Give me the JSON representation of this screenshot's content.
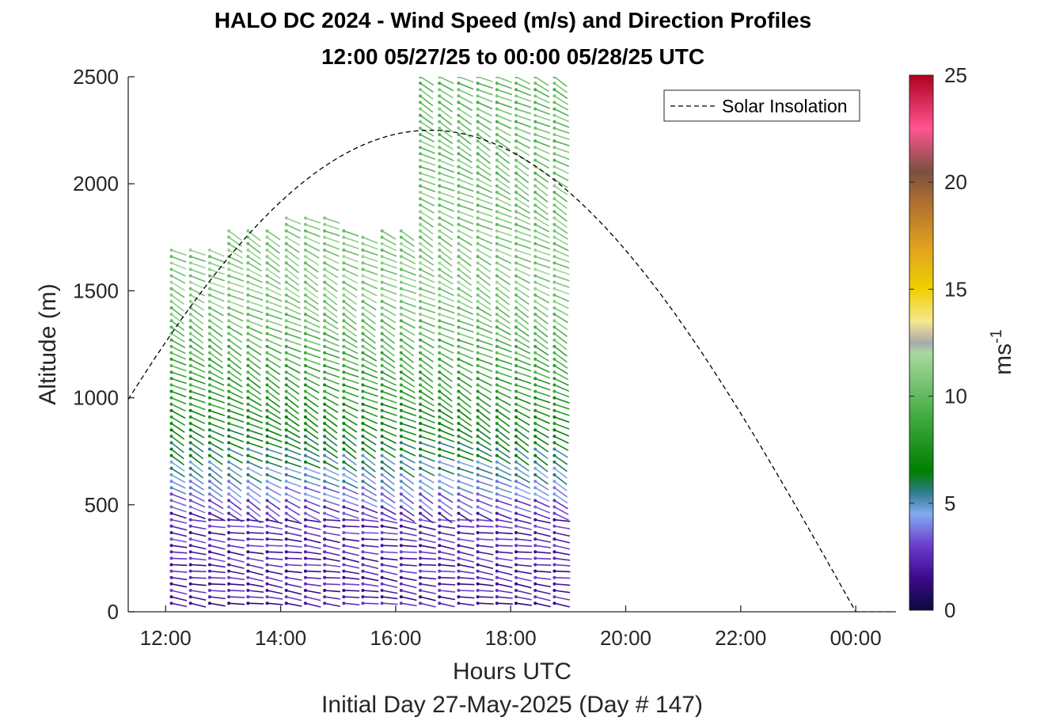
{
  "chart_data": {
    "type": "scatter",
    "title": "HALO DC 2024 - Wind Speed (m/s) and Direction Profiles",
    "subtitle": "12:00 05/27/25 to 00:00 05/28/25  UTC",
    "xlabel": "Hours UTC",
    "ylabel": "Altitude (m)",
    "footer": "Initial Day 27-May-2025 (Day # 147)",
    "x_ticks": [
      "12:00",
      "14:00",
      "16:00",
      "18:00",
      "20:00",
      "22:00",
      "00:00"
    ],
    "x_tick_hours": [
      12,
      14,
      16,
      18,
      20,
      22,
      24
    ],
    "xlim_hours": [
      11.35,
      24.7
    ],
    "y_ticks": [
      "0",
      "500",
      "1000",
      "1500",
      "2000",
      "2500"
    ],
    "ylim": [
      0,
      2500
    ],
    "colorbar": {
      "label": "ms",
      "label_superscript": "-1",
      "range": [
        0,
        25
      ],
      "ticks": [
        "0",
        "5",
        "10",
        "15",
        "20",
        "25"
      ]
    },
    "legend": {
      "entries": [
        "Solar Insolation"
      ],
      "placement": "top-right",
      "line_style": "dashed"
    },
    "solar_insolation": {
      "style": "dashed black line",
      "peak_hour": 16.6,
      "peak_altitude": 2250,
      "zero_hour": 24.0,
      "flat_until_hour": 24.65
    },
    "wind_profiles": {
      "description": "Wind barbs at each profile time, coloured by speed (m/s)",
      "profile_start_hour": 12.1,
      "profile_end_hour": 18.85,
      "profile_step_hour": 0.333,
      "altitude_step_m": 30,
      "tops_m": [
        1700,
        1700,
        1700,
        1780,
        1780,
        1780,
        1840,
        1860,
        1850,
        1780,
        1760,
        1780,
        1780,
        2500,
        2500,
        2500,
        2500,
        2500,
        2500,
        2500,
        2500
      ],
      "speed_by_altitude": [
        {
          "altitude": 0,
          "speed": 2
        },
        {
          "altitude": 450,
          "speed": 2.5
        },
        {
          "altitude": 600,
          "speed": 4.5
        },
        {
          "altitude": 800,
          "speed": 6.5
        },
        {
          "altitude": 1000,
          "speed": 8
        },
        {
          "altitude": 1500,
          "speed": 11
        },
        {
          "altitude": 2500,
          "speed": 10
        }
      ],
      "colormap": [
        {
          "v": 0,
          "color": "#0a0a3c"
        },
        {
          "v": 1.5,
          "color": "#3c0a8c"
        },
        {
          "v": 3,
          "color": "#6a3ccc"
        },
        {
          "v": 4.5,
          "color": "#82aaf0"
        },
        {
          "v": 5.5,
          "color": "#2e7b8c"
        },
        {
          "v": 6.5,
          "color": "#008000"
        },
        {
          "v": 9,
          "color": "#3faa3f"
        },
        {
          "v": 12,
          "color": "#a8d8a0"
        },
        {
          "v": 12.5,
          "color": "#aaaaaa"
        },
        {
          "v": 13.5,
          "color": "#f5e890"
        },
        {
          "v": 15,
          "color": "#f0d000"
        },
        {
          "v": 17,
          "color": "#e0a020"
        },
        {
          "v": 19,
          "color": "#b07030"
        },
        {
          "v": 20.5,
          "color": "#7a5040"
        },
        {
          "v": 22.5,
          "color": "#ff5590"
        },
        {
          "v": 25,
          "color": "#b00020"
        }
      ]
    }
  }
}
